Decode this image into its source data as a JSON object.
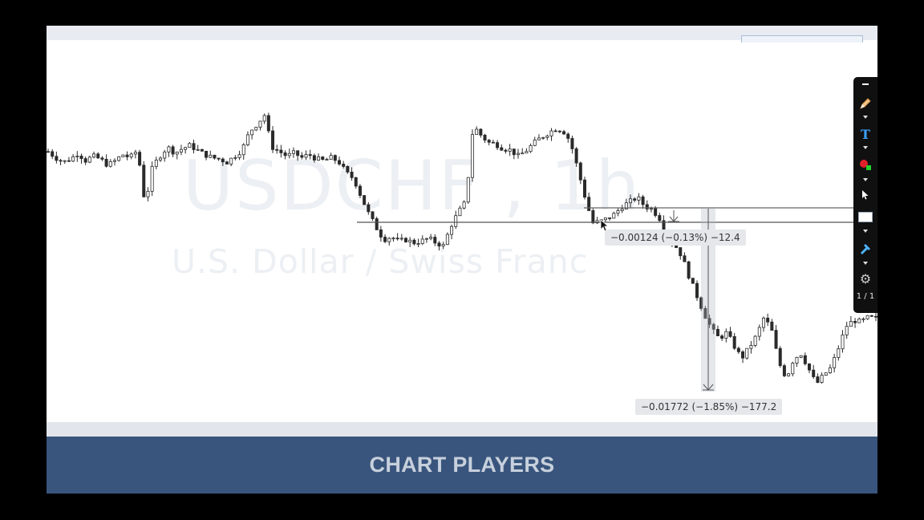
{
  "chart": {
    "symbol_watermark": "USDCHF , 1h",
    "description_watermark": "U.S. Dollar / Swiss Franc",
    "measure_small": "−0.00124 (−0.13%) −12.4",
    "measure_large": "−0.01772 (−1.85%) −177.2"
  },
  "banner": {
    "title": "CHART PLAYERS"
  },
  "toolbar": {
    "tools": [
      "minimize-icon",
      "pencil-icon",
      "text-icon",
      "color-icon",
      "pointer-icon",
      "rectangle-icon",
      "hammer-icon",
      "gear-icon"
    ],
    "page_indicator": "1 / 1"
  },
  "colors": {
    "banner_bg": "#39557d",
    "banner_text": "#c7d0dc",
    "candle": "#2a2a2a",
    "measure_bg": "#e5e7ea",
    "toolbar_bg": "#101010"
  },
  "chart_data": {
    "type": "candlestick",
    "close_path": [
      14.5,
      14.1,
      13.8,
      14.0,
      14.4,
      13.9,
      14.2,
      14.0,
      13.6,
      13.9,
      14.3,
      14.1,
      14.6,
      11.0,
      13.5,
      14.2,
      14.8,
      14.4,
      14.7,
      14.9,
      14.6,
      14.3,
      14.1,
      14.0,
      13.8,
      14.2,
      14.6,
      15.8,
      16.3,
      16.9,
      14.8,
      14.5,
      14.2,
      14.4,
      14.1,
      14.3,
      14.0,
      13.9,
      14.1,
      13.8,
      13.1,
      12.7,
      11.5,
      10.4,
      9.5,
      8.7,
      8.9,
      8.6,
      8.7,
      8.5,
      8.6,
      8.8,
      8.5,
      8.3,
      9.6,
      10.5,
      11.2,
      16.2,
      15.6,
      15.1,
      15.0,
      14.7,
      14.6,
      14.2,
      14.5,
      15.0,
      15.4,
      15.7,
      16.0,
      15.9,
      15.2,
      13.4,
      11.5,
      9.8,
      9.9,
      10.1,
      10.4,
      10.9,
      11.2,
      11.5,
      10.9,
      10.7,
      10.1,
      8.8,
      8.4
    ]
  }
}
